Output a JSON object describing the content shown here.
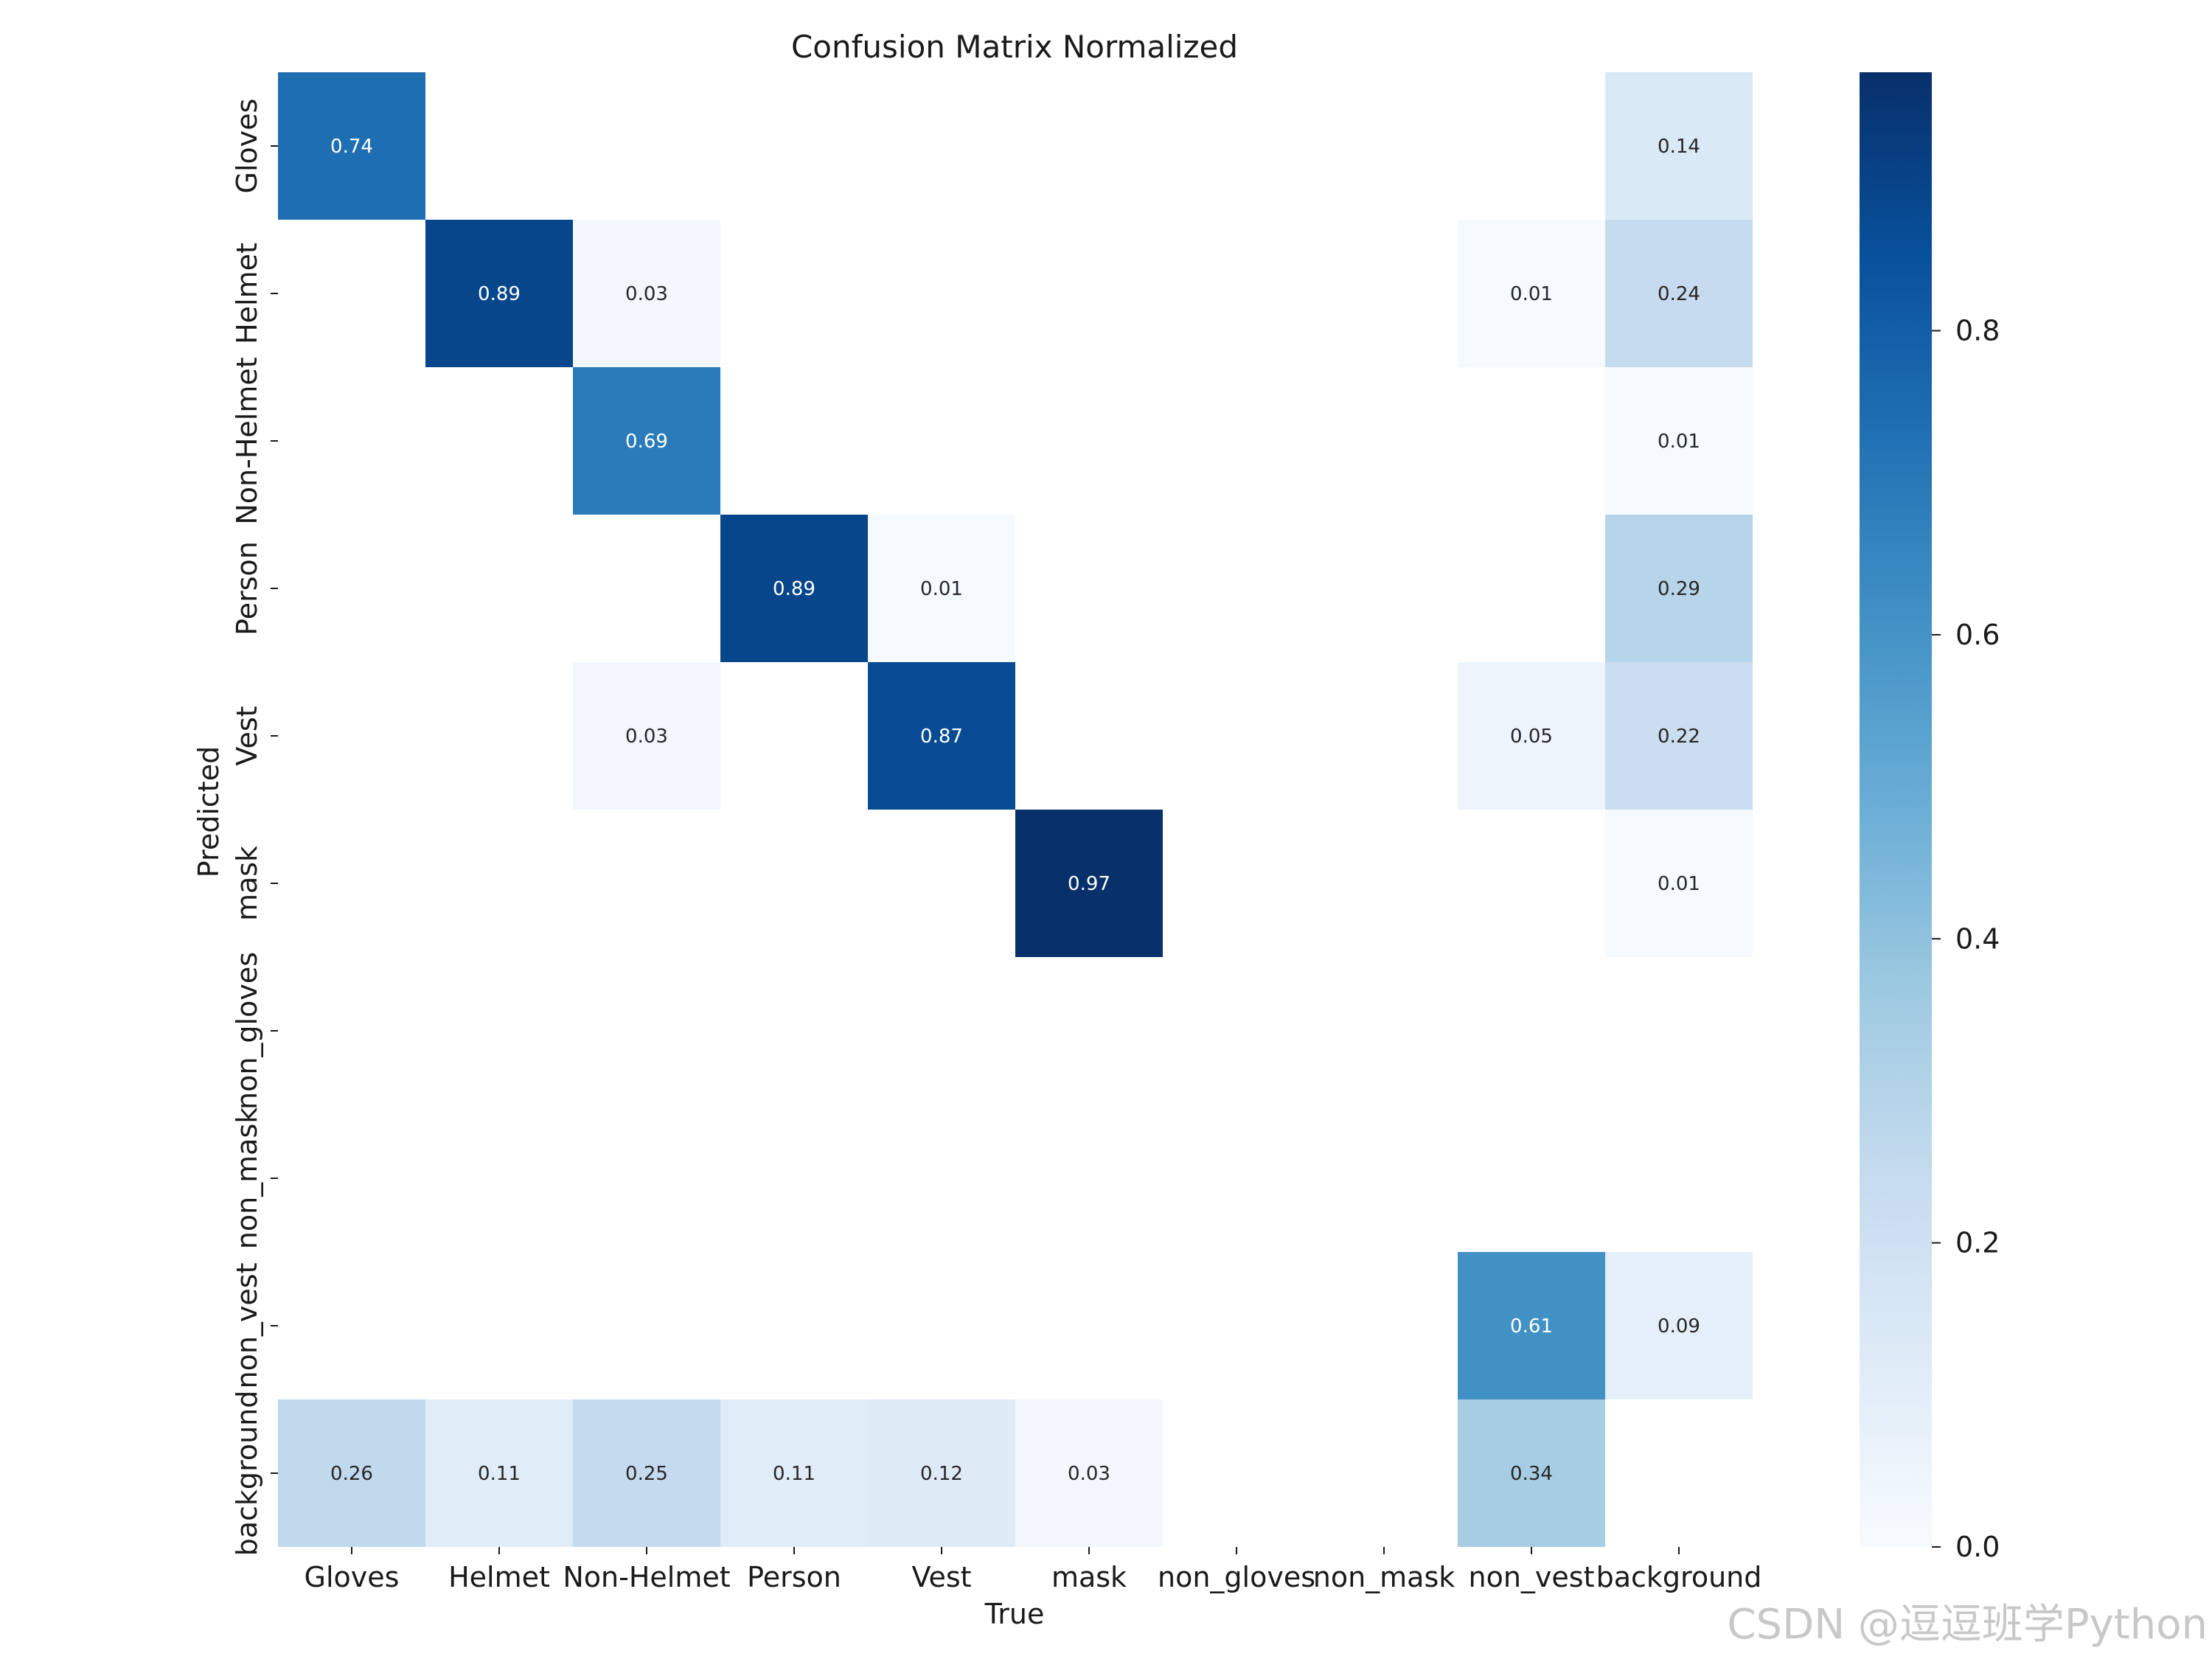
{
  "chart_data": {
    "type": "heatmap",
    "title": "Confusion Matrix Normalized",
    "xlabel": "True",
    "ylabel": "Predicted",
    "x_categories": [
      "Gloves",
      "Helmet",
      "Non-Helmet",
      "Person",
      "Vest",
      "mask",
      "non_gloves",
      "non_mask",
      "non_vest",
      "background"
    ],
    "y_categories": [
      "Gloves",
      "Helmet",
      "Non-Helmet",
      "Person",
      "Vest",
      "mask",
      "non_gloves",
      "non_mask",
      "non_vest",
      "background"
    ],
    "values": [
      [
        0.74,
        null,
        null,
        null,
        null,
        null,
        null,
        null,
        null,
        0.14
      ],
      [
        null,
        0.89,
        0.03,
        null,
        null,
        null,
        null,
        null,
        0.01,
        0.24
      ],
      [
        null,
        null,
        0.69,
        null,
        null,
        null,
        null,
        null,
        null,
        0.01
      ],
      [
        null,
        null,
        null,
        0.89,
        0.01,
        null,
        null,
        null,
        null,
        0.29
      ],
      [
        null,
        null,
        0.03,
        null,
        0.87,
        null,
        null,
        null,
        0.05,
        0.22
      ],
      [
        null,
        null,
        null,
        null,
        null,
        0.97,
        null,
        null,
        null,
        0.01
      ],
      [
        null,
        null,
        null,
        null,
        null,
        null,
        null,
        null,
        null,
        null
      ],
      [
        null,
        null,
        null,
        null,
        null,
        null,
        null,
        null,
        null,
        null
      ],
      [
        null,
        null,
        null,
        null,
        null,
        null,
        null,
        null,
        0.61,
        0.09
      ],
      [
        0.26,
        0.11,
        0.25,
        0.11,
        0.12,
        0.03,
        null,
        null,
        0.34,
        null
      ]
    ],
    "colorbar": {
      "range": [
        0.0,
        0.97
      ],
      "ticks": [
        "0.0",
        "0.2",
        "0.4",
        "0.6",
        "0.8"
      ],
      "tick_values": [
        0.0,
        0.2,
        0.4,
        0.6,
        0.8
      ],
      "colormap": "Blues"
    },
    "grid": false
  },
  "watermark": "CSDN @逗逗班学Python"
}
